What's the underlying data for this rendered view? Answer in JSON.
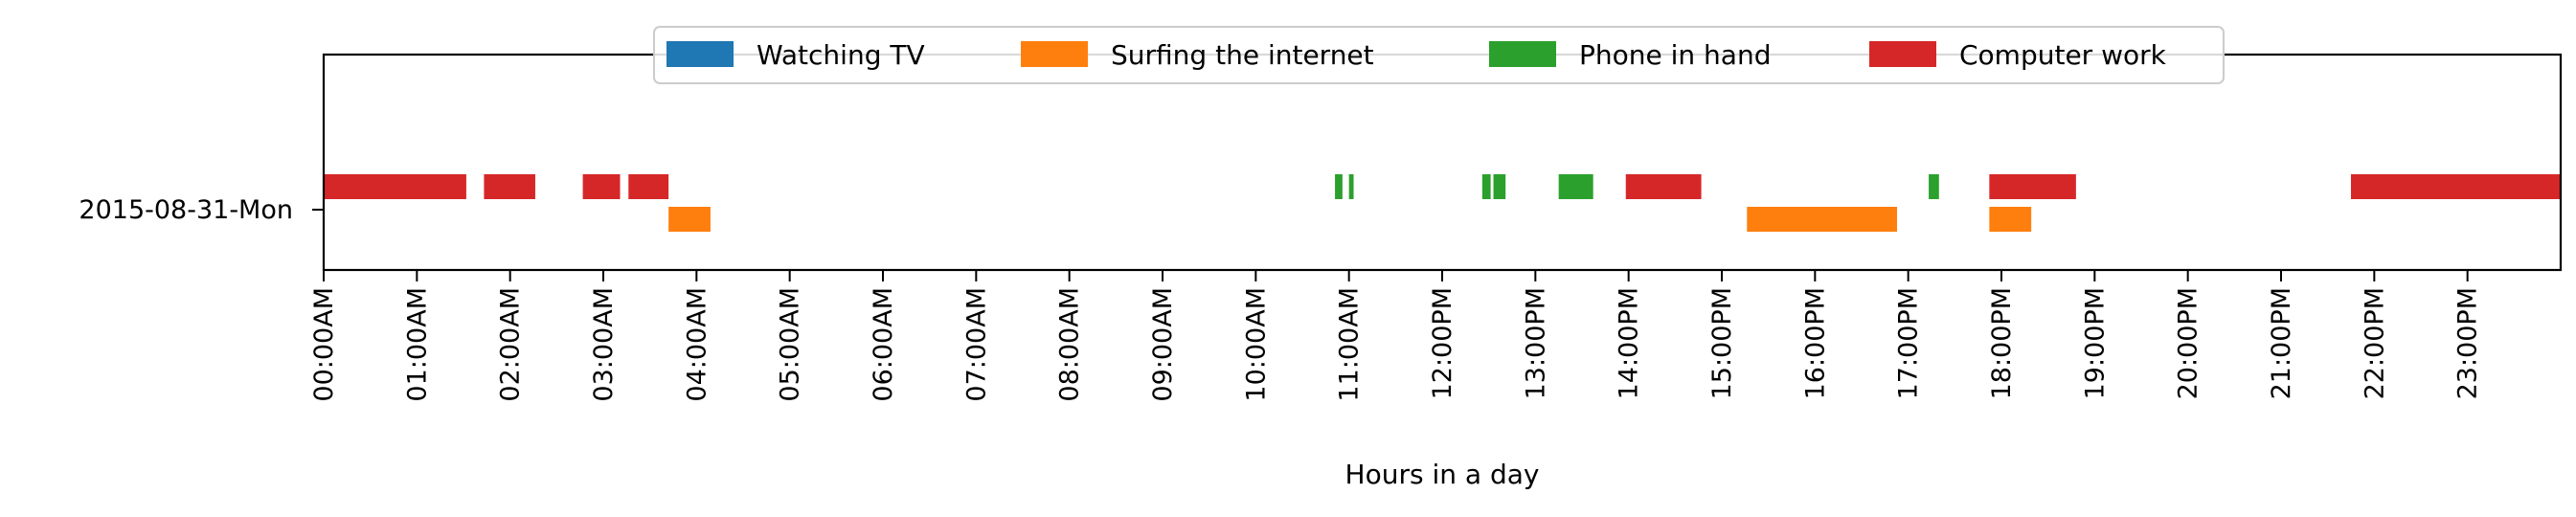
{
  "chart_data": {
    "type": "timeline",
    "title": "",
    "xlabel": "Hours in a day",
    "ylabel": "",
    "xlim": [
      0,
      24
    ],
    "y_categories": [
      "2015-08-31-Mon"
    ],
    "x_tick_labels": [
      "00:00AM",
      "01:00AM",
      "02:00AM",
      "03:00AM",
      "04:00AM",
      "05:00AM",
      "06:00AM",
      "07:00AM",
      "08:00AM",
      "09:00AM",
      "10:00AM",
      "11:00AM",
      "12:00PM",
      "13:00PM",
      "14:00PM",
      "15:00PM",
      "16:00PM",
      "17:00PM",
      "18:00PM",
      "19:00PM",
      "20:00PM",
      "21:00PM",
      "22:00PM",
      "23:00PM"
    ],
    "legend": {
      "placement": "upper-center"
    },
    "series": [
      {
        "name": "Watching TV",
        "color": "#1f77b4",
        "lane": "upper",
        "intervals": []
      },
      {
        "name": "Surfing the internet",
        "color": "#ff7f0e",
        "lane": "lower",
        "intervals": [
          [
            3.7,
            4.15
          ],
          [
            15.27,
            16.88
          ],
          [
            17.87,
            18.32
          ]
        ]
      },
      {
        "name": "Phone in hand",
        "color": "#2ca02c",
        "lane": "upper",
        "intervals": [
          [
            10.85,
            10.93
          ],
          [
            11.0,
            11.05
          ],
          [
            12.43,
            12.52
          ],
          [
            12.55,
            12.68
          ],
          [
            13.25,
            13.62
          ],
          [
            17.22,
            17.33
          ]
        ]
      },
      {
        "name": "Computer work",
        "color": "#d62728",
        "lane": "upper",
        "intervals": [
          [
            0.0,
            1.53
          ],
          [
            1.72,
            2.27
          ],
          [
            2.78,
            3.18
          ],
          [
            3.27,
            3.7
          ],
          [
            13.97,
            14.78
          ],
          [
            17.87,
            18.8
          ],
          [
            21.75,
            24.0
          ]
        ]
      }
    ]
  }
}
